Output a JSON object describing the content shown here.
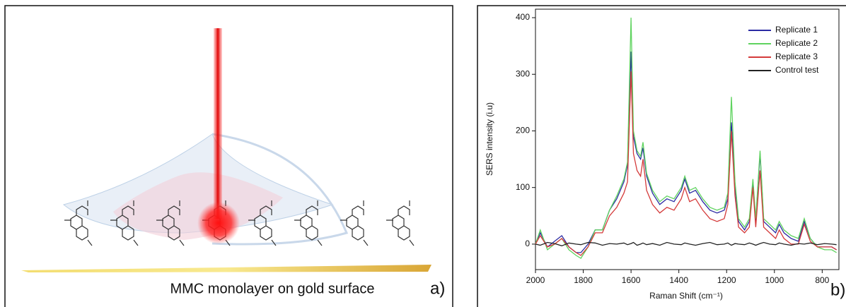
{
  "panel_a": {
    "caption": "MMC monolayer on gold surface",
    "label": "a)"
  },
  "panel_b_label": "b)",
  "chart_data": {
    "type": "line",
    "xlabel": "Raman Shift (cm⁻¹)",
    "ylabel": "SERS intensity (i.u)",
    "x": [
      2000,
      1980,
      1950,
      1920,
      1890,
      1860,
      1830,
      1810,
      1780,
      1750,
      1720,
      1690,
      1660,
      1630,
      1615,
      1600,
      1590,
      1575,
      1560,
      1550,
      1535,
      1510,
      1480,
      1450,
      1420,
      1390,
      1375,
      1355,
      1330,
      1300,
      1270,
      1240,
      1210,
      1195,
      1180,
      1165,
      1150,
      1125,
      1105,
      1090,
      1078,
      1060,
      1045,
      1020,
      995,
      980,
      960,
      930,
      900,
      875,
      850,
      820,
      790,
      760,
      740
    ],
    "series": [
      {
        "name": "Replicate 1",
        "color": "#2b2ba3",
        "values": [
          0,
          20,
          -5,
          5,
          15,
          -5,
          -15,
          -15,
          0,
          25,
          25,
          60,
          80,
          110,
          140,
          340,
          190,
          160,
          150,
          170,
          120,
          90,
          70,
          80,
          75,
          95,
          115,
          90,
          95,
          75,
          60,
          55,
          60,
          80,
          215,
          100,
          40,
          25,
          40,
          110,
          40,
          160,
          40,
          30,
          20,
          35,
          20,
          10,
          5,
          40,
          10,
          -5,
          -5,
          -5,
          -10
        ]
      },
      {
        "name": "Replicate 2",
        "color": "#5fd35f",
        "values": [
          0,
          25,
          -10,
          0,
          10,
          -10,
          -20,
          -25,
          -5,
          25,
          25,
          60,
          85,
          115,
          145,
          400,
          200,
          165,
          155,
          180,
          125,
          95,
          75,
          85,
          80,
          100,
          120,
          95,
          100,
          80,
          65,
          60,
          65,
          90,
          260,
          110,
          45,
          30,
          45,
          115,
          45,
          165,
          45,
          35,
          25,
          40,
          25,
          15,
          10,
          45,
          10,
          -5,
          -10,
          -10,
          -15
        ]
      },
      {
        "name": "Replicate 3",
        "color": "#d43a3a",
        "values": [
          0,
          15,
          -5,
          0,
          10,
          -5,
          -15,
          -20,
          -5,
          20,
          20,
          50,
          65,
          90,
          110,
          305,
          160,
          130,
          120,
          150,
          95,
          70,
          55,
          65,
          60,
          80,
          100,
          75,
          80,
          60,
          45,
          40,
          45,
          70,
          200,
          85,
          30,
          20,
          30,
          100,
          30,
          130,
          30,
          20,
          10,
          25,
          10,
          0,
          0,
          35,
          5,
          -5,
          -5,
          -5,
          -10
        ]
      },
      {
        "name": "Control test",
        "color": "#222222",
        "values": [
          0,
          -2,
          3,
          1,
          -3,
          2,
          0,
          -1,
          3,
          2,
          -2,
          1,
          0,
          2,
          -1,
          1,
          3,
          -2,
          0,
          2,
          -1,
          1,
          -2,
          3,
          0,
          -1,
          2,
          0,
          -2,
          1,
          3,
          -1,
          0,
          2,
          -2,
          1,
          0,
          -1,
          2,
          0,
          -2,
          1,
          3,
          0,
          -1,
          2,
          0,
          -2,
          1,
          0,
          2,
          -1,
          1,
          0,
          -1
        ]
      }
    ],
    "xlim": [
      2000,
      730
    ],
    "xticks": [
      2000,
      1800,
      1600,
      1400,
      1200,
      1000,
      800
    ],
    "ylim": [
      -45,
      415
    ],
    "yticks": [
      0,
      100,
      200,
      300,
      400
    ],
    "legend": "top-right"
  }
}
